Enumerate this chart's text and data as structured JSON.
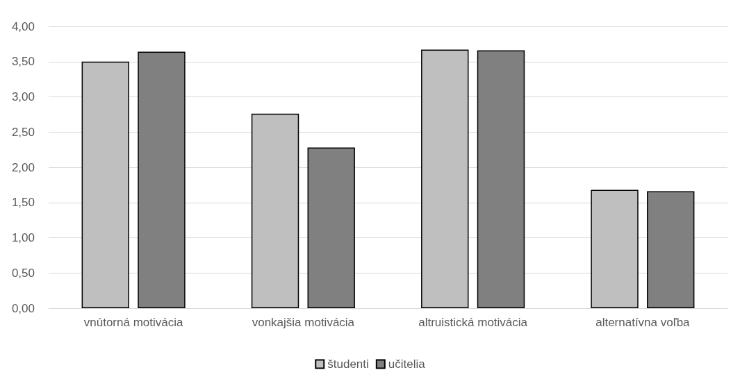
{
  "chart_data": {
    "type": "bar",
    "categories": [
      "vnútorná motivácia",
      "vonkajšia motivácia",
      "altruistická motivácia",
      "alternatívna voľba"
    ],
    "series": [
      {
        "name": "študenti",
        "color": "#bfbfbf",
        "values": [
          3.5,
          2.76,
          3.67,
          1.68
        ]
      },
      {
        "name": "učitelia",
        "color": "#808080",
        "values": [
          3.64,
          2.28,
          3.66,
          1.66
        ]
      }
    ],
    "ylim": [
      0,
      4
    ],
    "yticks": [
      {
        "value": 0,
        "label": "0,00"
      },
      {
        "value": 0.5,
        "label": "0,50"
      },
      {
        "value": 1,
        "label": "1,00"
      },
      {
        "value": 1.5,
        "label": "1,50"
      },
      {
        "value": 2,
        "label": "2,00"
      },
      {
        "value": 2.5,
        "label": "2,50"
      },
      {
        "value": 3,
        "label": "3,00"
      },
      {
        "value": 3.5,
        "label": "3,50"
      },
      {
        "value": 4,
        "label": "4,00"
      }
    ],
    "grid": "y",
    "legend": "bottom"
  }
}
